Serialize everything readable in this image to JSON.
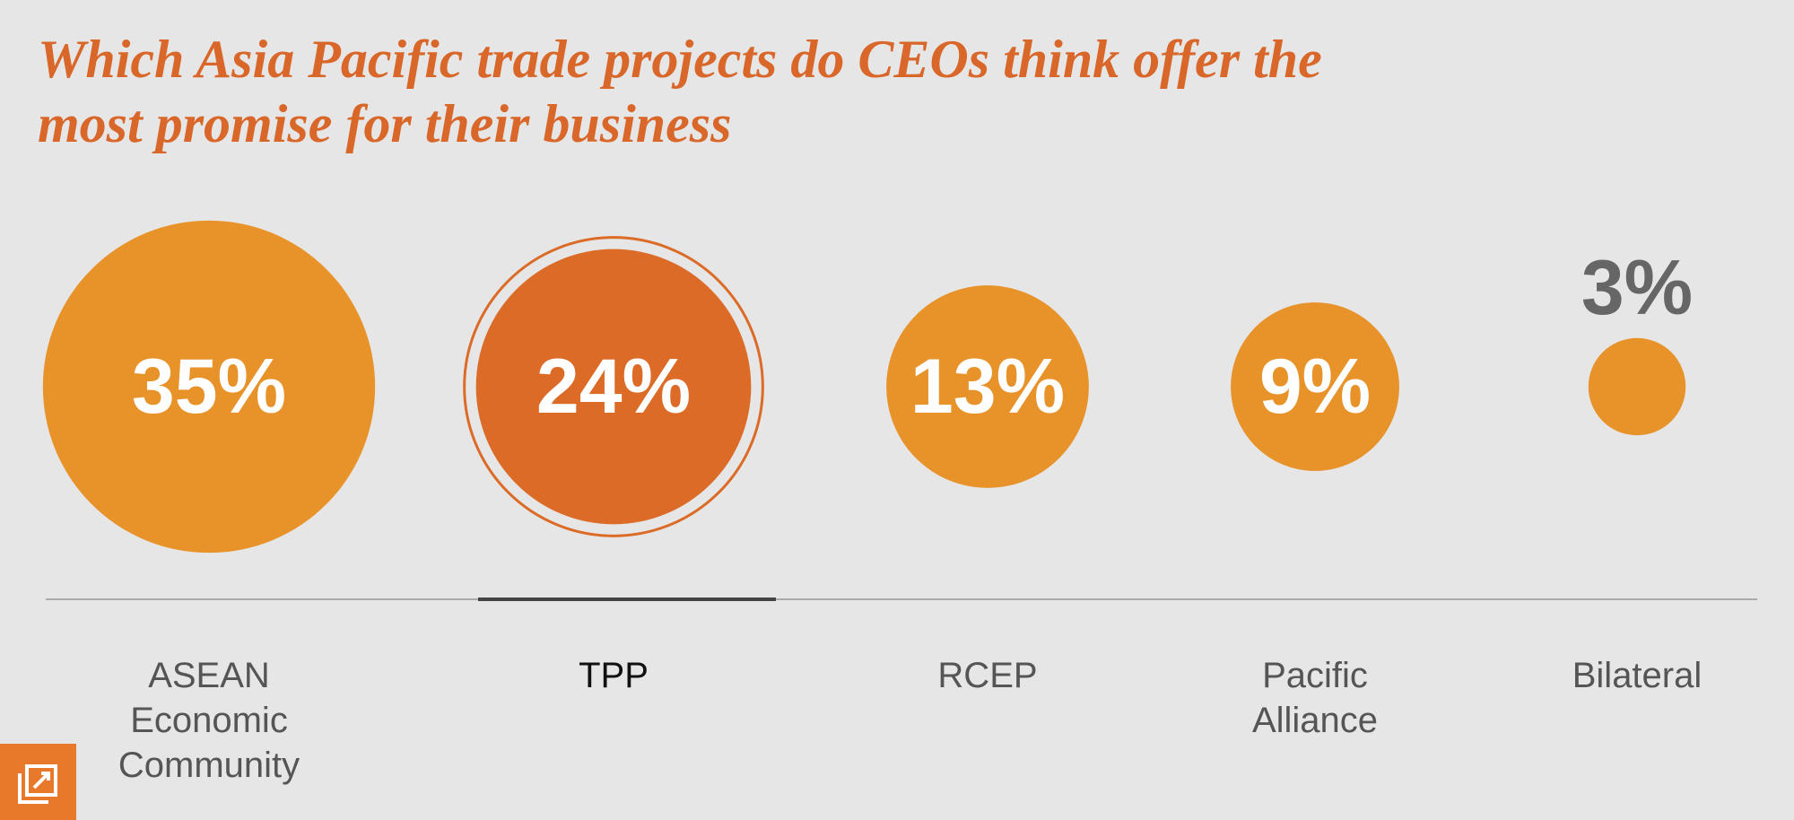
{
  "chart_data": {
    "type": "bubble",
    "title": "Which Asia Pacific trade projects do CEOs think offer the most promise for their business",
    "categories": [
      "ASEAN Economic Community",
      "TPP",
      "RCEP",
      "Pacific Alliance",
      "Bilateral"
    ],
    "values": [
      35,
      24,
      13,
      9,
      3
    ],
    "value_labels": [
      "35%",
      "24%",
      "13%",
      "9%",
      "3%"
    ],
    "colors": [
      "#e8922a",
      "#dc6b27",
      "#e8922a",
      "#e8922a",
      "#e8922a"
    ],
    "selected": 1
  }
}
